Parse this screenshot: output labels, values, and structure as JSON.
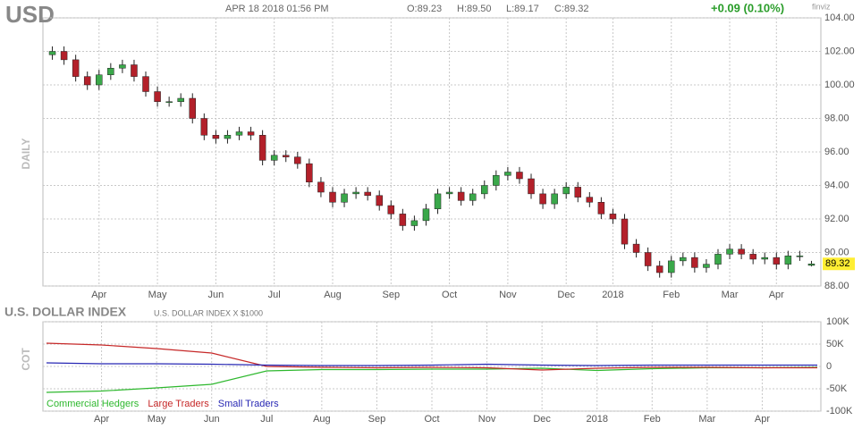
{
  "header": {
    "symbol": "USD",
    "datetime": "APR 18 2018 01:56 PM",
    "open": "O:89.23",
    "high": "H:89.50",
    "low": "L:89.17",
    "close": "C:89.32",
    "change": "+0.09 (0.10%)",
    "logo": "finviz"
  },
  "chart_data": [
    {
      "type": "candlestick",
      "side_label": "DAILY",
      "categories": [
        null,
        null,
        null,
        null,
        "Apr",
        null,
        null,
        null,
        null,
        "May",
        null,
        null,
        null,
        null,
        "Jun",
        null,
        null,
        null,
        null,
        "Jul",
        null,
        null,
        null,
        null,
        "Aug",
        null,
        null,
        null,
        null,
        "Sep",
        null,
        null,
        null,
        null,
        "Oct",
        null,
        null,
        null,
        null,
        "Nov",
        null,
        null,
        null,
        null,
        "Dec",
        null,
        null,
        null,
        "2018",
        null,
        null,
        null,
        null,
        "Feb",
        null,
        null,
        null,
        null,
        "Mar",
        null,
        null,
        null,
        "Apr",
        null,
        null,
        null
      ],
      "open": [
        101.8,
        102,
        101.5,
        100.5,
        100,
        100.6,
        101,
        101.2,
        100.5,
        99.6,
        99,
        99,
        99.2,
        98,
        97,
        96.8,
        97,
        97.2,
        97,
        95.5,
        95.8,
        95.7,
        95.3,
        94.2,
        93.6,
        93,
        93.5,
        93.6,
        93.4,
        92.8,
        92.3,
        91.6,
        91.9,
        92.6,
        93.5,
        93.6,
        93.1,
        93.5,
        94,
        94.6,
        94.8,
        94.4,
        93.5,
        92.9,
        93.5,
        93.9,
        93.3,
        93,
        92.3,
        92,
        90.5,
        90,
        89.2,
        88.8,
        89.5,
        89.7,
        89.1,
        89.3,
        89.9,
        90.2,
        89.9,
        89.6,
        89.7,
        89.3,
        89.8,
        89.23
      ],
      "high": [
        102.3,
        102.3,
        101.8,
        100.8,
        100.9,
        101.3,
        101.5,
        101.5,
        100.8,
        99.9,
        99.3,
        99.5,
        99.5,
        98.3,
        97.3,
        97.3,
        97.5,
        97.5,
        97.3,
        96.1,
        96.1,
        96,
        95.6,
        94.5,
        93.9,
        93.8,
        93.9,
        93.9,
        93.7,
        93.1,
        92.6,
        92.2,
        92.9,
        93.8,
        93.9,
        93.9,
        93.8,
        94.3,
        94.9,
        95.1,
        95.1,
        94.7,
        93.8,
        93.8,
        94.2,
        94.2,
        93.6,
        93.3,
        92.6,
        92.3,
        90.8,
        90.3,
        89.5,
        89.8,
        90,
        90,
        89.6,
        90.2,
        90.5,
        90.5,
        90.2,
        90,
        90,
        90.1,
        90.1,
        89.5
      ],
      "low": [
        101.5,
        101.2,
        100.2,
        99.7,
        99.7,
        100.3,
        100.7,
        100.2,
        99.3,
        98.7,
        98.7,
        98.7,
        97.7,
        96.7,
        96.5,
        96.5,
        96.7,
        96.7,
        95.2,
        95.2,
        95.4,
        95,
        93.9,
        93.3,
        92.7,
        92.7,
        93.2,
        93.1,
        92.5,
        92,
        91.3,
        91.3,
        91.6,
        92.3,
        93.2,
        92.8,
        92.8,
        93.2,
        93.7,
        94.3,
        94.1,
        93.2,
        92.6,
        92.6,
        93.2,
        93,
        92.7,
        92,
        91.7,
        90.2,
        89.7,
        88.9,
        88.5,
        88.5,
        89.2,
        88.8,
        88.8,
        89,
        89.6,
        89.6,
        89.3,
        89.3,
        89,
        89,
        89.5,
        89.17
      ],
      "close": [
        102,
        101.5,
        100.5,
        100,
        100.6,
        101,
        101.2,
        100.5,
        99.6,
        99,
        99,
        99.2,
        98,
        97,
        96.8,
        97,
        97.2,
        97,
        95.5,
        95.8,
        95.7,
        95.3,
        94.2,
        93.6,
        93,
        93.5,
        93.6,
        93.4,
        92.8,
        92.3,
        91.6,
        91.9,
        92.6,
        93.5,
        93.6,
        93.1,
        93.5,
        94,
        94.6,
        94.8,
        94.4,
        93.5,
        92.9,
        93.5,
        93.9,
        93.3,
        93,
        92.3,
        92,
        90.5,
        90,
        89.2,
        88.8,
        89.5,
        89.7,
        89.1,
        89.3,
        89.9,
        90.2,
        89.9,
        89.6,
        89.7,
        89.3,
        89.8,
        89.8,
        89.32
      ],
      "up_color": "#3aa84a",
      "down_color": "#b3202a",
      "ylim": [
        88,
        104
      ],
      "yticks": [
        {
          "value": 88,
          "label": "88.00"
        },
        {
          "value": 90,
          "label": "90.00"
        },
        {
          "value": 92,
          "label": "92.00"
        },
        {
          "value": 94,
          "label": "94.00"
        },
        {
          "value": 96,
          "label": "96.00"
        },
        {
          "value": 98,
          "label": "98.00"
        },
        {
          "value": 100,
          "label": "100.00"
        },
        {
          "value": 102,
          "label": "102.00"
        },
        {
          "value": 104,
          "label": "104.00"
        }
      ],
      "grid": true
    },
    {
      "type": "line",
      "title": "U.S. DOLLAR INDEX",
      "subtitle": "U.S. DOLLAR INDEX X $1000",
      "side_label": "COT",
      "categories": [
        null,
        "Apr",
        "May",
        "Jun",
        "Jul",
        "Aug",
        "Sep",
        "Oct",
        "Nov",
        "Dec",
        "2018",
        "Feb",
        "Mar",
        "Apr",
        null
      ],
      "series": [
        {
          "name": "Commercial Hedgers",
          "color": "#2eb82e",
          "values": [
            -58000,
            -55000,
            -48000,
            -40000,
            -10000,
            -7000,
            -7000,
            -6000,
            -6000,
            -4000,
            -9000,
            -5000,
            -3000,
            -3000,
            -2000
          ]
        },
        {
          "name": "Large Traders",
          "color": "#c62828",
          "values": [
            52000,
            48000,
            40000,
            30000,
            0,
            -2000,
            -3000,
            -2000,
            -3000,
            -8000,
            -4000,
            -2000,
            -2000,
            -3000,
            -3000
          ]
        },
        {
          "name": "Small Traders",
          "color": "#2828b4",
          "values": [
            8000,
            6000,
            6000,
            5000,
            3000,
            2000,
            2000,
            3000,
            5000,
            3000,
            2000,
            3000,
            3000,
            3000,
            3000
          ]
        }
      ],
      "ylim": [
        -100000,
        100000
      ],
      "yticks": [
        {
          "value": -100000,
          "label": "-100K"
        },
        {
          "value": -50000,
          "label": "-50K"
        },
        0,
        {
          "value": 50000,
          "label": "50K"
        },
        {
          "value": 100000,
          "label": "100K"
        }
      ],
      "grid": true
    }
  ]
}
